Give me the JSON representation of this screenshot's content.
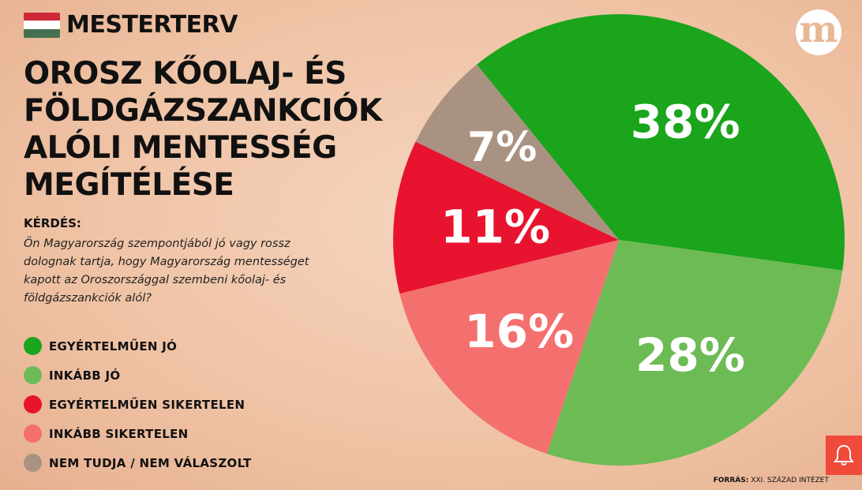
{
  "header": {
    "brand": "MESTERTERV",
    "flag_colors": [
      "#ce2939",
      "#ffffff",
      "#477050"
    ]
  },
  "title_lines": [
    "OROSZ KŐOLAJ- ÉS",
    "FÖLDGÁZSZANKCIÓK",
    "ALÓLI MENTESSÉG",
    "MEGÍTÉLÉSE"
  ],
  "question": {
    "label": "KÉRDÉS:",
    "text": "Ön Magyarország szempontjából jó vagy rossz dolognak tartja, hogy Magyarország mentességet kapott az Oroszországgal szembeni kőolaj- és földgázszankciók alól?"
  },
  "logo_letter": "m",
  "source": {
    "label": "FORRÁS:",
    "value": "XXI. SZÁZAD INTÉZET"
  },
  "icons": {
    "logo": "media-logo-icon",
    "bell": "bell-icon"
  },
  "chart_data": {
    "type": "pie",
    "slices": [
      {
        "label": "EGYÉRTELMŰEN JÓ",
        "value": 38,
        "display": "38%",
        "color": "#1aa51c"
      },
      {
        "label": "INKÁBB JÓ",
        "value": 28,
        "display": "28%",
        "color": "#6dbb55"
      },
      {
        "label": "INKÁBB SIKERTELEN",
        "value": 16,
        "display": "16%",
        "color": "#f4706e"
      },
      {
        "label": "EGYÉRTELMŰEN SIKERTELEN",
        "value": 11,
        "display": "11%",
        "color": "#e8142f"
      },
      {
        "label": "NEM TUDJA / NEM VÁLASZOLT",
        "value": 7,
        "display": "7%",
        "color": "#aa9282"
      }
    ],
    "legend_order": [
      "EGYÉRTELMŰEN JÓ",
      "INKÁBB JÓ",
      "EGYÉRTELMŰEN SIKERTELEN",
      "INKÁBB SIKERTELEN",
      "NEM TUDJA / NEM VÁLASZOLT"
    ],
    "legend_position": "bottom-left"
  }
}
